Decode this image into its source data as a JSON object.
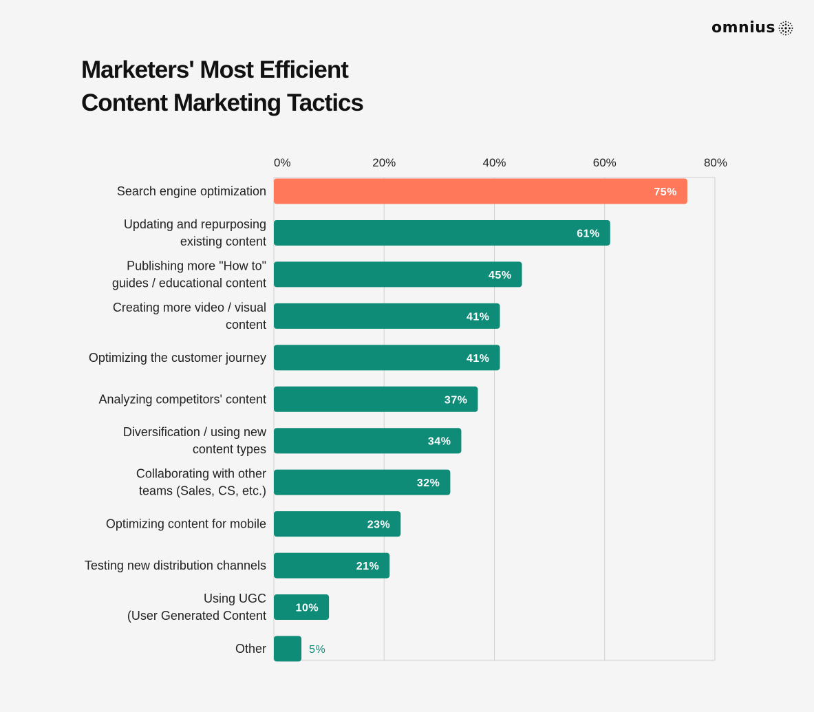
{
  "brand": {
    "name": "omnius"
  },
  "title_lines": [
    "Marketers' Most Efficient",
    "Content Marketing Tactics"
  ],
  "colors": {
    "highlight": "#FF785A",
    "bar": "#0F8C78",
    "grid": "#d0d0d0",
    "background": "#f5f5f5"
  },
  "chart_data": {
    "type": "bar",
    "orientation": "horizontal",
    "title": "Marketers' Most Efficient Content Marketing Tactics",
    "xlim": [
      0,
      80
    ],
    "x_ticks": [
      "0%",
      "20%",
      "40%",
      "60%",
      "80%"
    ],
    "grid": true,
    "categories": [
      [
        "Search engine optimization"
      ],
      [
        "Updating and repurposing",
        "existing content"
      ],
      [
        "Publishing more \"How to\"",
        "guides / educational content"
      ],
      [
        "Creating more video / visual",
        "content"
      ],
      [
        "Optimizing the customer journey"
      ],
      [
        "Analyzing competitors' content"
      ],
      [
        "Diversification / using new",
        "content types"
      ],
      [
        "Collaborating with other",
        "teams (Sales, CS, etc.)"
      ],
      [
        "Optimizing content for mobile"
      ],
      [
        "Testing new distribution channels"
      ],
      [
        "Using UGC",
        "(User Generated Content"
      ],
      [
        "Other"
      ]
    ],
    "values": [
      75,
      61,
      45,
      41,
      41,
      37,
      34,
      32,
      23,
      21,
      10,
      5
    ],
    "labels": [
      "75%",
      "61%",
      "45%",
      "41%",
      "41%",
      "37%",
      "34%",
      "32%",
      "23%",
      "21%",
      "10%",
      "5%"
    ],
    "highlight_index": 0
  }
}
